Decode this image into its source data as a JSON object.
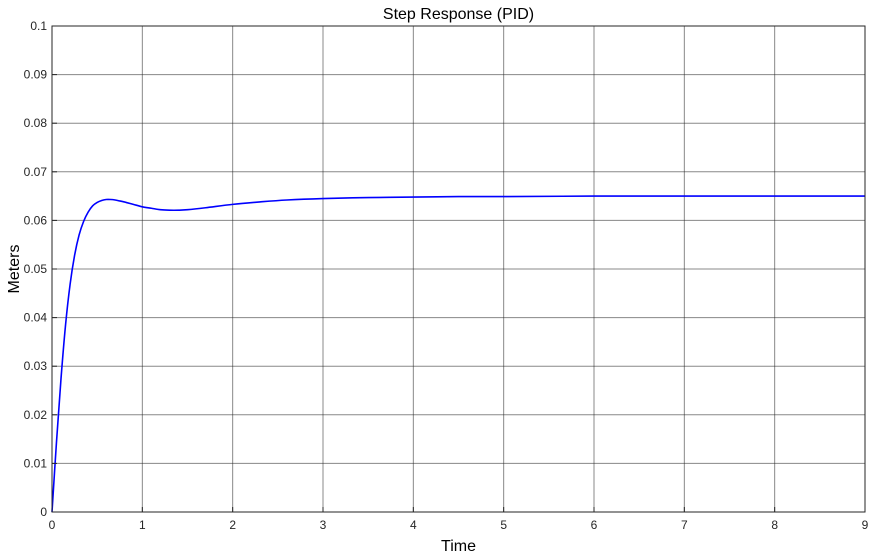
{
  "chart_data": {
    "type": "line",
    "title": "Step Response (PID)",
    "xlabel": "Time",
    "ylabel": "Meters",
    "xlim": [
      0,
      9
    ],
    "ylim": [
      0,
      0.1
    ],
    "grid": true,
    "x_ticks": [
      "0",
      "1",
      "2",
      "3",
      "4",
      "5",
      "6",
      "7",
      "8",
      "9"
    ],
    "y_ticks": [
      "0",
      "0.01",
      "0.02",
      "0.03",
      "0.04",
      "0.05",
      "0.06",
      "0.07",
      "0.08",
      "0.09",
      "0.1"
    ],
    "series": [
      {
        "color": "#0000ff",
        "x": [
          0,
          0.05,
          0.1,
          0.15,
          0.2,
          0.25,
          0.3,
          0.35,
          0.4,
          0.45,
          0.5,
          0.55,
          0.6,
          0.65,
          0.7,
          0.75,
          0.8,
          0.9,
          1.0,
          1.1,
          1.2,
          1.3,
          1.4,
          1.5,
          1.7,
          2.0,
          2.3,
          2.6,
          3.0,
          3.5,
          4.0,
          4.5,
          5.0,
          6.0,
          7.0,
          8.0,
          9.0
        ],
        "values": [
          0,
          0.0145,
          0.0275,
          0.0385,
          0.0468,
          0.0528,
          0.057,
          0.0598,
          0.0617,
          0.063,
          0.0637,
          0.0641,
          0.0643,
          0.0643,
          0.0642,
          0.064,
          0.0638,
          0.0633,
          0.0628,
          0.0625,
          0.0622,
          0.0621,
          0.0621,
          0.0622,
          0.0626,
          0.0633,
          0.0638,
          0.0642,
          0.0645,
          0.0647,
          0.0648,
          0.0649,
          0.0649,
          0.065,
          0.065,
          0.065,
          0.065
        ]
      }
    ]
  }
}
